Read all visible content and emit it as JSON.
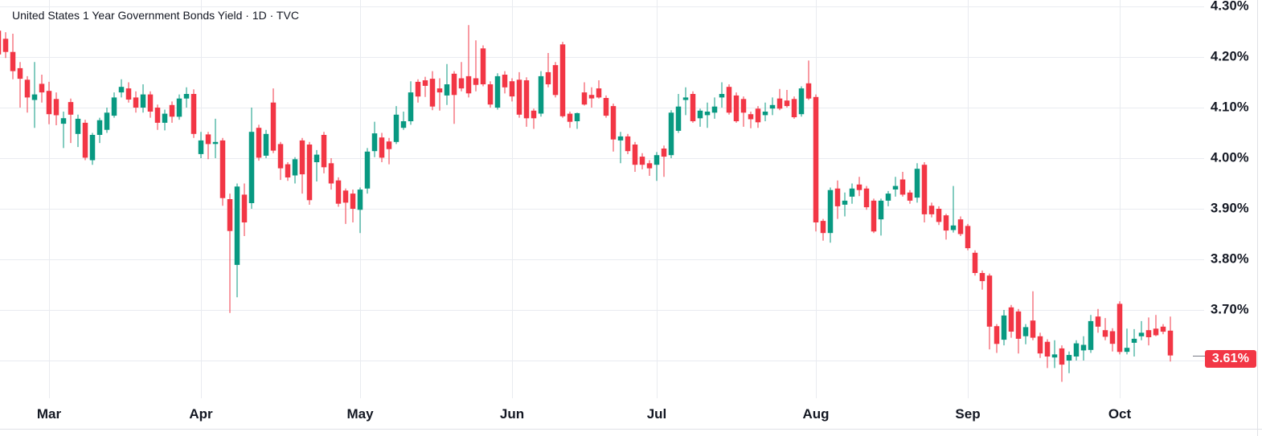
{
  "title": "United States 1 Year Government Bonds Yield · 1D · TVC",
  "badge": {
    "text": "3.61%",
    "value": 3.61
  },
  "colors": {
    "up": "#089981",
    "down": "#f23645",
    "grid": "#e9ebf0",
    "frame": "#dfe1e6",
    "axis_tick": "#787b86",
    "axis_text": "#131722",
    "badge_bg": "#f23645",
    "badge_text": "#ffffff"
  },
  "chart_data": {
    "type": "candlestick",
    "title": "United States 1 Year Government Bonds Yield",
    "interval": "1D",
    "source": "TVC",
    "y_unit": "%",
    "ylim": [
      3.52,
      4.32
    ],
    "grid": true,
    "last_close": 3.61,
    "y_ticks": [
      {
        "label": "4.30%",
        "value": 4.3
      },
      {
        "label": "4.20%",
        "value": 4.2
      },
      {
        "label": "4.10%",
        "value": 4.1
      },
      {
        "label": "4.00%",
        "value": 4.0
      },
      {
        "label": "3.90%",
        "value": 3.9
      },
      {
        "label": "3.80%",
        "value": 3.8
      },
      {
        "label": "3.70%",
        "value": 3.7
      },
      {
        "label": "",
        "value": 3.6
      }
    ],
    "x_ticks": [
      {
        "label": "Mar",
        "candle_index": 7
      },
      {
        "label": "Apr",
        "candle_index": 28
      },
      {
        "label": "May",
        "candle_index": 50
      },
      {
        "label": "Jun",
        "candle_index": 71
      },
      {
        "label": "Jul",
        "candle_index": 91
      },
      {
        "label": "Aug",
        "candle_index": 113
      },
      {
        "label": "Sep",
        "candle_index": 134
      },
      {
        "label": "Oct",
        "candle_index": 155
      }
    ],
    "candles": [
      [
        4.252,
        4.268,
        4.19,
        4.205
      ],
      [
        4.236,
        4.249,
        4.198,
        4.21
      ],
      [
        4.21,
        4.246,
        4.156,
        4.172
      ],
      [
        4.178,
        4.19,
        4.1,
        4.157
      ],
      [
        4.155,
        4.162,
        4.09,
        4.12
      ],
      [
        4.115,
        4.19,
        4.06,
        4.126
      ],
      [
        4.147,
        4.165,
        4.11,
        4.13
      ],
      [
        4.133,
        4.151,
        4.067,
        4.087
      ],
      [
        4.117,
        4.13,
        4.065,
        4.085
      ],
      [
        4.068,
        4.092,
        4.02,
        4.079
      ],
      [
        4.111,
        4.118,
        4.03,
        4.086
      ],
      [
        4.048,
        4.086,
        4.022,
        4.078
      ],
      [
        4.07,
        4.076,
        3.996,
        4.001
      ],
      [
        3.996,
        4.05,
        3.987,
        4.046
      ],
      [
        4.046,
        4.08,
        4.03,
        4.075
      ],
      [
        4.056,
        4.1,
        4.05,
        4.09
      ],
      [
        4.084,
        4.13,
        4.08,
        4.12
      ],
      [
        4.13,
        4.156,
        4.12,
        4.141
      ],
      [
        4.138,
        4.15,
        4.11,
        4.116
      ],
      [
        4.12,
        4.132,
        4.09,
        4.1
      ],
      [
        4.1,
        4.146,
        4.09,
        4.126
      ],
      [
        4.126,
        4.132,
        4.08,
        4.092
      ],
      [
        4.1,
        4.106,
        4.056,
        4.07
      ],
      [
        4.07,
        4.096,
        4.055,
        4.088
      ],
      [
        4.105,
        4.112,
        4.07,
        4.082
      ],
      [
        4.082,
        4.126,
        4.076,
        4.118
      ],
      [
        4.118,
        4.14,
        4.1,
        4.127
      ],
      [
        4.127,
        4.136,
        4.04,
        4.048
      ],
      [
        4.008,
        4.052,
        4.0,
        4.035
      ],
      [
        4.047,
        4.052,
        3.998,
        4.028
      ],
      [
        4.028,
        4.078,
        4.0,
        4.032
      ],
      [
        4.035,
        4.04,
        3.906,
        3.921
      ],
      [
        3.919,
        3.93,
        3.694,
        3.856
      ],
      [
        3.789,
        3.95,
        3.725,
        3.944
      ],
      [
        3.928,
        3.95,
        3.846,
        3.873
      ],
      [
        3.911,
        4.1,
        3.9,
        4.052
      ],
      [
        4.06,
        4.066,
        3.995,
        4.001
      ],
      [
        4.005,
        4.056,
        4.0,
        4.048
      ],
      [
        4.11,
        4.138,
        4.01,
        4.015
      ],
      [
        4.028,
        4.032,
        3.957,
        3.98
      ],
      [
        3.988,
        3.992,
        3.955,
        3.962
      ],
      [
        3.966,
        4.002,
        3.95,
        3.998
      ],
      [
        4.035,
        4.04,
        3.93,
        3.968
      ],
      [
        4.027,
        4.032,
        3.908,
        3.917
      ],
      [
        3.992,
        4.016,
        3.954,
        4.007
      ],
      [
        4.046,
        4.052,
        3.97,
        3.982
      ],
      [
        3.99,
        4.0,
        3.938,
        3.95
      ],
      [
        3.956,
        3.962,
        3.904,
        3.91
      ],
      [
        3.936,
        3.94,
        3.87,
        3.912
      ],
      [
        3.93,
        3.938,
        3.873,
        3.9
      ],
      [
        3.898,
        3.942,
        3.852,
        3.938
      ],
      [
        3.94,
        4.02,
        3.93,
        4.013
      ],
      [
        4.014,
        4.072,
        4.002,
        4.049
      ],
      [
        4.041,
        4.05,
        3.992,
        4.001
      ],
      [
        4.033,
        4.04,
        3.988,
        4.018
      ],
      [
        4.032,
        4.103,
        4.028,
        4.086
      ],
      [
        4.06,
        4.092,
        4.056,
        4.073
      ],
      [
        4.073,
        4.152,
        4.066,
        4.13
      ],
      [
        4.151,
        4.156,
        4.11,
        4.122
      ],
      [
        4.154,
        4.161,
        4.121,
        4.143
      ],
      [
        4.157,
        4.172,
        4.095,
        4.102
      ],
      [
        4.138,
        4.158,
        4.094,
        4.13
      ],
      [
        4.124,
        4.186,
        4.105,
        4.146
      ],
      [
        4.167,
        4.172,
        4.068,
        4.125
      ],
      [
        4.158,
        4.19,
        4.132,
        4.138
      ],
      [
        4.162,
        4.263,
        4.12,
        4.128
      ],
      [
        4.158,
        4.233,
        4.132,
        4.145
      ],
      [
        4.217,
        4.223,
        4.142,
        4.146
      ],
      [
        4.146,
        4.152,
        4.1,
        4.106
      ],
      [
        4.1,
        4.168,
        4.096,
        4.162
      ],
      [
        4.165,
        4.172,
        4.128,
        4.14
      ],
      [
        4.152,
        4.158,
        4.112,
        4.122
      ],
      [
        4.155,
        4.17,
        4.08,
        4.086
      ],
      [
        4.154,
        4.16,
        4.062,
        4.079
      ],
      [
        4.094,
        4.098,
        4.058,
        4.079
      ],
      [
        4.088,
        4.172,
        4.082,
        4.162
      ],
      [
        4.17,
        4.208,
        4.14,
        4.146
      ],
      [
        4.184,
        4.19,
        4.12,
        4.125
      ],
      [
        4.225,
        4.23,
        4.08,
        4.083
      ],
      [
        4.088,
        4.092,
        4.06,
        4.072
      ],
      [
        4.073,
        4.09,
        4.058,
        4.089
      ],
      [
        4.13,
        4.15,
        4.104,
        4.106
      ],
      [
        4.125,
        4.14,
        4.1,
        4.118
      ],
      [
        4.138,
        4.154,
        4.118,
        4.12
      ],
      [
        4.119,
        4.124,
        4.08,
        4.084
      ],
      [
        4.103,
        4.108,
        4.013,
        4.037
      ],
      [
        4.035,
        4.052,
        3.99,
        4.043
      ],
      [
        4.043,
        4.048,
        4.008,
        4.014
      ],
      [
        4.027,
        4.032,
        3.973,
        3.987
      ],
      [
        4.003,
        4.01,
        3.978,
        3.987
      ],
      [
        3.99,
        3.996,
        3.965,
        3.98
      ],
      [
        3.987,
        4.012,
        3.955,
        4.006
      ],
      [
        4.019,
        4.025,
        3.963,
        4.003
      ],
      [
        4.006,
        4.095,
        4.0,
        4.09
      ],
      [
        4.054,
        4.127,
        4.05,
        4.102
      ],
      [
        4.115,
        4.14,
        4.085,
        4.12
      ],
      [
        4.127,
        4.132,
        4.07,
        4.073
      ],
      [
        4.079,
        4.098,
        4.062,
        4.094
      ],
      [
        4.085,
        4.11,
        4.06,
        4.092
      ],
      [
        4.09,
        4.12,
        4.078,
        4.102
      ],
      [
        4.12,
        4.15,
        4.1,
        4.127
      ],
      [
        4.141,
        4.146,
        4.086,
        4.09
      ],
      [
        4.124,
        4.13,
        4.07,
        4.073
      ],
      [
        4.117,
        4.122,
        4.062,
        4.09
      ],
      [
        4.087,
        4.092,
        4.059,
        4.077
      ],
      [
        4.098,
        4.103,
        4.06,
        4.071
      ],
      [
        4.085,
        4.11,
        4.073,
        4.092
      ],
      [
        4.098,
        4.12,
        4.085,
        4.105
      ],
      [
        4.118,
        4.137,
        4.095,
        4.098
      ],
      [
        4.114,
        4.135,
        4.1,
        4.103
      ],
      [
        4.117,
        4.122,
        4.078,
        4.081
      ],
      [
        4.087,
        4.142,
        4.082,
        4.138
      ],
      [
        4.148,
        4.193,
        4.115,
        4.118
      ],
      [
        4.121,
        4.126,
        3.855,
        3.873
      ],
      [
        3.876,
        3.88,
        3.837,
        3.852
      ],
      [
        3.852,
        3.942,
        3.833,
        3.937
      ],
      [
        3.94,
        3.956,
        3.88,
        3.905
      ],
      [
        3.908,
        3.932,
        3.885,
        3.916
      ],
      [
        3.924,
        3.95,
        3.91,
        3.94
      ],
      [
        3.948,
        3.963,
        3.925,
        3.937
      ],
      [
        3.94,
        3.945,
        3.898,
        3.903
      ],
      [
        3.916,
        3.92,
        3.852,
        3.855
      ],
      [
        3.879,
        3.92,
        3.847,
        3.916
      ],
      [
        3.916,
        3.935,
        3.905,
        3.93
      ],
      [
        3.938,
        3.963,
        3.924,
        3.945
      ],
      [
        3.958,
        3.973,
        3.924,
        3.928
      ],
      [
        3.932,
        3.937,
        3.91,
        3.916
      ],
      [
        3.922,
        3.99,
        3.912,
        3.979
      ],
      [
        3.987,
        3.992,
        3.873,
        3.889
      ],
      [
        3.906,
        3.912,
        3.883,
        3.889
      ],
      [
        3.9,
        3.905,
        3.868,
        3.874
      ],
      [
        3.887,
        3.89,
        3.839,
        3.857
      ],
      [
        3.858,
        3.945,
        3.853,
        3.867
      ],
      [
        3.879,
        3.885,
        3.846,
        3.85
      ],
      [
        3.866,
        3.87,
        3.818,
        3.822
      ],
      [
        3.813,
        3.818,
        3.768,
        3.773
      ],
      [
        3.773,
        3.778,
        3.74,
        3.757
      ],
      [
        3.768,
        3.772,
        3.622,
        3.667
      ],
      [
        3.668,
        3.672,
        3.615,
        3.633
      ],
      [
        3.641,
        3.7,
        3.63,
        3.689
      ],
      [
        3.705,
        3.71,
        3.645,
        3.657
      ],
      [
        3.697,
        3.702,
        3.614,
        3.643
      ],
      [
        3.648,
        3.672,
        3.632,
        3.666
      ],
      [
        3.679,
        3.737,
        3.64,
        3.645
      ],
      [
        3.648,
        3.655,
        3.605,
        3.614
      ],
      [
        3.637,
        3.642,
        3.585,
        3.608
      ],
      [
        3.606,
        3.64,
        3.585,
        3.612
      ],
      [
        3.624,
        3.63,
        3.558,
        3.592
      ],
      [
        3.6,
        3.618,
        3.575,
        3.611
      ],
      [
        3.608,
        3.64,
        3.6,
        3.634
      ],
      [
        3.62,
        3.648,
        3.6,
        3.631
      ],
      [
        3.621,
        3.69,
        3.615,
        3.678
      ],
      [
        3.687,
        3.702,
        3.655,
        3.667
      ],
      [
        3.66,
        3.684,
        3.64,
        3.647
      ],
      [
        3.658,
        3.664,
        3.618,
        3.633
      ],
      [
        3.712,
        3.717,
        3.612,
        3.617
      ],
      [
        3.617,
        3.663,
        3.612,
        3.625
      ],
      [
        3.635,
        3.662,
        3.608,
        3.643
      ],
      [
        3.648,
        3.678,
        3.64,
        3.655
      ],
      [
        3.66,
        3.685,
        3.63,
        3.646
      ],
      [
        3.663,
        3.69,
        3.648,
        3.65
      ],
      [
        3.667,
        3.672,
        3.652,
        3.657
      ],
      [
        3.659,
        3.687,
        3.598,
        3.61
      ]
    ]
  }
}
